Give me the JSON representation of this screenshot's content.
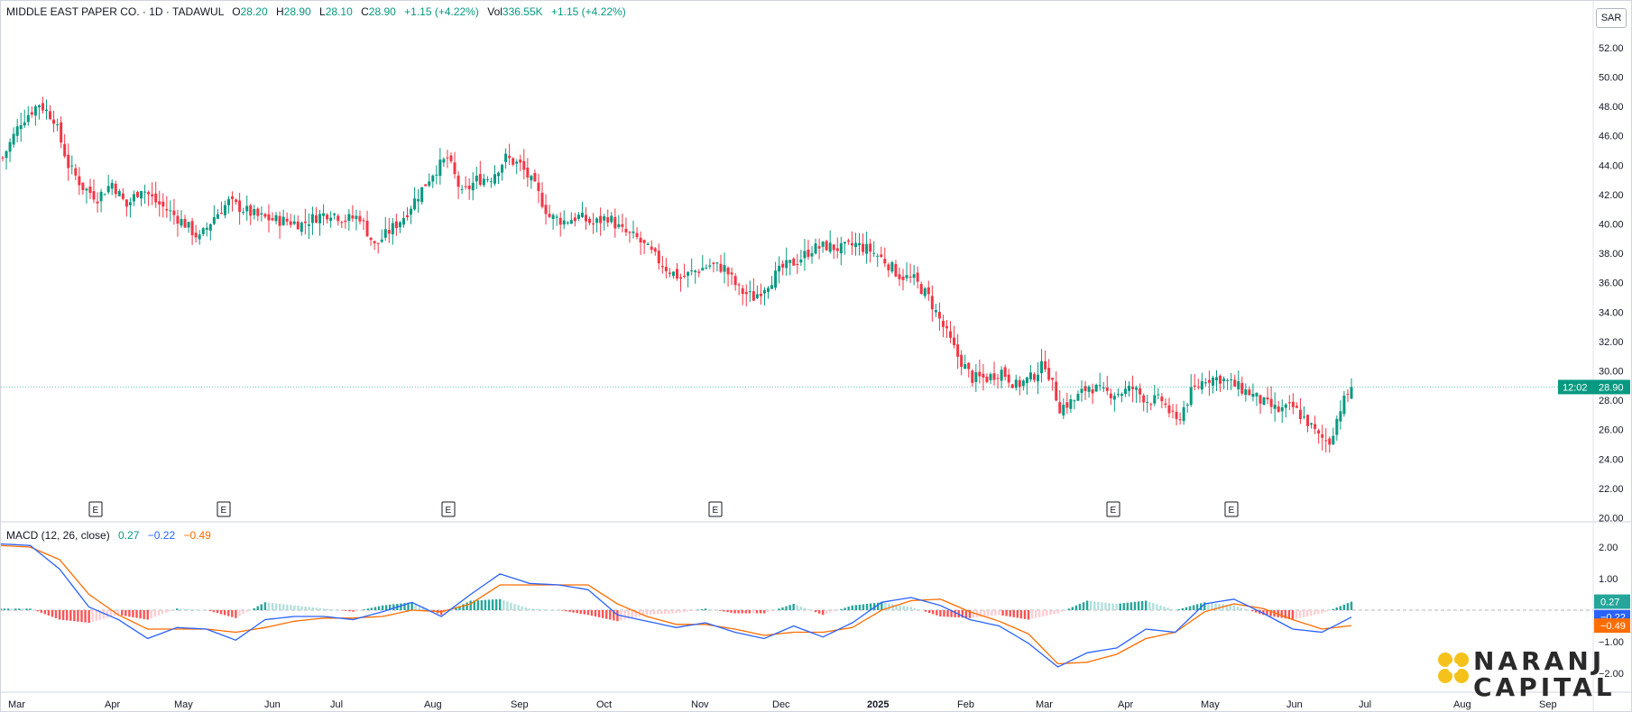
{
  "header": {
    "symbol": "MIDDLE EAST PAPER CO. · 1D · TADAWUL",
    "open_label": "O",
    "open": "28.20",
    "high_label": "H",
    "high": "28.90",
    "low_label": "L",
    "low": "28.10",
    "close_label": "C",
    "close": "28.90",
    "change": "+1.15 (+4.22%)",
    "vol_label": "Vol",
    "vol": "336.55K",
    "vol_change": "+1.15 (+4.22%)"
  },
  "currency": "SAR",
  "macd_header": {
    "label": "MACD (12, 26, close)",
    "hist": "0.27",
    "macd": "−0.22",
    "signal": "−0.49"
  },
  "price_badge": {
    "countdown": "12:02",
    "price": "28.90"
  },
  "macd_badges": {
    "hist": "0.27",
    "macd": "−0.22",
    "signal": "−0.49"
  },
  "logo": {
    "line1": "NARANJ",
    "line2": "CAPITAL"
  },
  "colors": {
    "up": "#089981",
    "down": "#f23645",
    "macd": "#2962ff",
    "signal": "#ff6d00",
    "hist_up": "#26a69a",
    "hist_down": "#ff5252"
  },
  "chart_data": [
    {
      "type": "candlestick",
      "title": "MIDDLE EAST PAPER CO. · 1D · TADAWUL",
      "y_ticks": [
        "52.00",
        "50.00",
        "48.00",
        "46.00",
        "44.00",
        "42.00",
        "40.00",
        "38.00",
        "36.00",
        "34.00",
        "32.00",
        "30.00",
        "28.00",
        "26.00",
        "24.00",
        "22.00",
        "20.00"
      ],
      "ylim": [
        20,
        52
      ],
      "x_ticks": [
        "Mar",
        "Apr",
        "May",
        "Jun",
        "Jul",
        "Aug",
        "Sep",
        "Oct",
        "Nov",
        "Dec",
        "2025",
        "Feb",
        "Mar",
        "Apr",
        "May",
        "Jun",
        "Jul",
        "Aug",
        "Sep"
      ],
      "close_path": [
        [
          0,
          44.5
        ],
        [
          5,
          47
        ],
        [
          10,
          48.2
        ],
        [
          14,
          47.2
        ],
        [
          18,
          44
        ],
        [
          22,
          42.5
        ],
        [
          26,
          41.8
        ],
        [
          30,
          42.8
        ],
        [
          34,
          41.2
        ],
        [
          38,
          42.5
        ],
        [
          42,
          41.5
        ],
        [
          46,
          40.8
        ],
        [
          50,
          40
        ],
        [
          54,
          39
        ],
        [
          58,
          40.5
        ],
        [
          62,
          41.5
        ],
        [
          66,
          41
        ],
        [
          70,
          40.5
        ],
        [
          74,
          40.3
        ],
        [
          78,
          40.2
        ],
        [
          82,
          40
        ],
        [
          86,
          40.5
        ],
        [
          90,
          40.8
        ],
        [
          94,
          40.3
        ],
        [
          98,
          40.5
        ],
        [
          102,
          38.5
        ],
        [
          106,
          39.5
        ],
        [
          110,
          40.5
        ],
        [
          114,
          42
        ],
        [
          118,
          43.5
        ],
        [
          122,
          44.5
        ],
        [
          126,
          42
        ],
        [
          130,
          43
        ],
        [
          134,
          43.2
        ],
        [
          138,
          44.5
        ],
        [
          142,
          44
        ],
        [
          146,
          42.5
        ],
        [
          150,
          40.5
        ],
        [
          154,
          40.2
        ],
        [
          158,
          40.5
        ],
        [
          162,
          40
        ],
        [
          166,
          40.5
        ],
        [
          170,
          39.5
        ],
        [
          174,
          39
        ],
        [
          178,
          38
        ],
        [
          182,
          37
        ],
        [
          186,
          36.3
        ],
        [
          190,
          36.8
        ],
        [
          194,
          37.2
        ],
        [
          198,
          37
        ],
        [
          202,
          35.5
        ],
        [
          206,
          35
        ],
        [
          210,
          36
        ],
        [
          214,
          37
        ],
        [
          218,
          37.5
        ],
        [
          222,
          38.3
        ],
        [
          226,
          38.5
        ],
        [
          230,
          38.3
        ],
        [
          234,
          38.6
        ],
        [
          238,
          38.2
        ],
        [
          242,
          37.5
        ],
        [
          246,
          36.5
        ],
        [
          250,
          36.2
        ],
        [
          254,
          35
        ],
        [
          258,
          33
        ],
        [
          262,
          31
        ],
        [
          266,
          29.5
        ],
        [
          270,
          29.5
        ],
        [
          274,
          30
        ],
        [
          278,
          29
        ],
        [
          282,
          29.5
        ],
        [
          286,
          30.5
        ],
        [
          290,
          27.5
        ],
        [
          294,
          28
        ],
        [
          298,
          29
        ],
        [
          302,
          28.5
        ],
        [
          306,
          28.5
        ],
        [
          310,
          28.8
        ],
        [
          314,
          28
        ],
        [
          318,
          28
        ],
        [
          322,
          26.5
        ],
        [
          326,
          28.5
        ],
        [
          330,
          29.5
        ],
        [
          334,
          29.5
        ],
        [
          338,
          29
        ],
        [
          342,
          28.5
        ],
        [
          346,
          27.8
        ],
        [
          350,
          27.3
        ],
        [
          354,
          27.5
        ],
        [
          358,
          26.5
        ],
        [
          361,
          25.5
        ],
        [
          364,
          25.2
        ],
        [
          367,
          27.5
        ],
        [
          370,
          28.9
        ]
      ],
      "x_domain": "trading days since 2024-02-22 (approx.)",
      "earnings_markers": [
        "E",
        "E",
        "E",
        "E",
        "E",
        "E"
      ],
      "last": {
        "price": 28.9
      }
    },
    {
      "type": "line",
      "title": "MACD (12, 26, close)",
      "y_ticks": [
        "2.00",
        "1.00",
        "−1.00",
        "−2.00"
      ],
      "ylim": [
        -2.4,
        2.4
      ],
      "series": [
        {
          "name": "MACD",
          "color": "#2962ff",
          "points": [
            [
              0,
              2.1
            ],
            [
              10,
              2.05
            ],
            [
              20,
              1.3
            ],
            [
              30,
              0.1
            ],
            [
              40,
              -0.3
            ],
            [
              50,
              -0.9
            ],
            [
              60,
              -0.55
            ],
            [
              70,
              -0.6
            ],
            [
              80,
              -0.95
            ],
            [
              90,
              -0.3
            ],
            [
              100,
              -0.2
            ],
            [
              110,
              -0.2
            ],
            [
              120,
              -0.3
            ],
            [
              130,
              -0.05
            ],
            [
              140,
              0.25
            ],
            [
              150,
              -0.2
            ],
            [
              160,
              0.5
            ],
            [
              170,
              1.15
            ],
            [
              180,
              0.85
            ],
            [
              190,
              0.8
            ],
            [
              200,
              0.65
            ],
            [
              210,
              -0.15
            ],
            [
              220,
              -0.35
            ],
            [
              230,
              -0.55
            ],
            [
              240,
              -0.4
            ],
            [
              250,
              -0.7
            ],
            [
              260,
              -0.9
            ],
            [
              270,
              -0.5
            ],
            [
              280,
              -0.85
            ],
            [
              290,
              -0.4
            ],
            [
              300,
              0.25
            ],
            [
              310,
              0.4
            ],
            [
              320,
              0.15
            ],
            [
              330,
              -0.3
            ],
            [
              340,
              -0.5
            ],
            [
              350,
              -1.05
            ],
            [
              360,
              -1.8
            ],
            [
              370,
              -1.35
            ],
            [
              380,
              -1.2
            ],
            [
              390,
              -0.6
            ],
            [
              400,
              -0.7
            ],
            [
              410,
              0.2
            ],
            [
              420,
              0.35
            ],
            [
              430,
              -0.1
            ],
            [
              440,
              -0.6
            ],
            [
              450,
              -0.7
            ],
            [
              460,
              -0.22
            ]
          ]
        },
        {
          "name": "Signal",
          "color": "#ff6d00",
          "points": [
            [
              0,
              2.05
            ],
            [
              10,
              2.0
            ],
            [
              20,
              1.6
            ],
            [
              30,
              0.5
            ],
            [
              40,
              -0.15
            ],
            [
              50,
              -0.6
            ],
            [
              60,
              -0.6
            ],
            [
              70,
              -0.6
            ],
            [
              80,
              -0.7
            ],
            [
              90,
              -0.55
            ],
            [
              100,
              -0.35
            ],
            [
              110,
              -0.25
            ],
            [
              120,
              -0.25
            ],
            [
              130,
              -0.2
            ],
            [
              140,
              0.0
            ],
            [
              150,
              -0.05
            ],
            [
              160,
              0.2
            ],
            [
              170,
              0.8
            ],
            [
              180,
              0.8
            ],
            [
              190,
              0.8
            ],
            [
              200,
              0.8
            ],
            [
              210,
              0.2
            ],
            [
              220,
              -0.2
            ],
            [
              230,
              -0.45
            ],
            [
              240,
              -0.45
            ],
            [
              250,
              -0.6
            ],
            [
              260,
              -0.8
            ],
            [
              270,
              -0.7
            ],
            [
              280,
              -0.7
            ],
            [
              290,
              -0.55
            ],
            [
              300,
              0.0
            ],
            [
              310,
              0.3
            ],
            [
              320,
              0.35
            ],
            [
              330,
              -0.05
            ],
            [
              340,
              -0.35
            ],
            [
              350,
              -0.75
            ],
            [
              360,
              -1.7
            ],
            [
              370,
              -1.65
            ],
            [
              380,
              -1.4
            ],
            [
              390,
              -0.9
            ],
            [
              400,
              -0.7
            ],
            [
              410,
              -0.05
            ],
            [
              420,
              0.2
            ],
            [
              430,
              0.05
            ],
            [
              440,
              -0.3
            ],
            [
              450,
              -0.6
            ],
            [
              460,
              -0.49
            ]
          ]
        }
      ]
    }
  ]
}
